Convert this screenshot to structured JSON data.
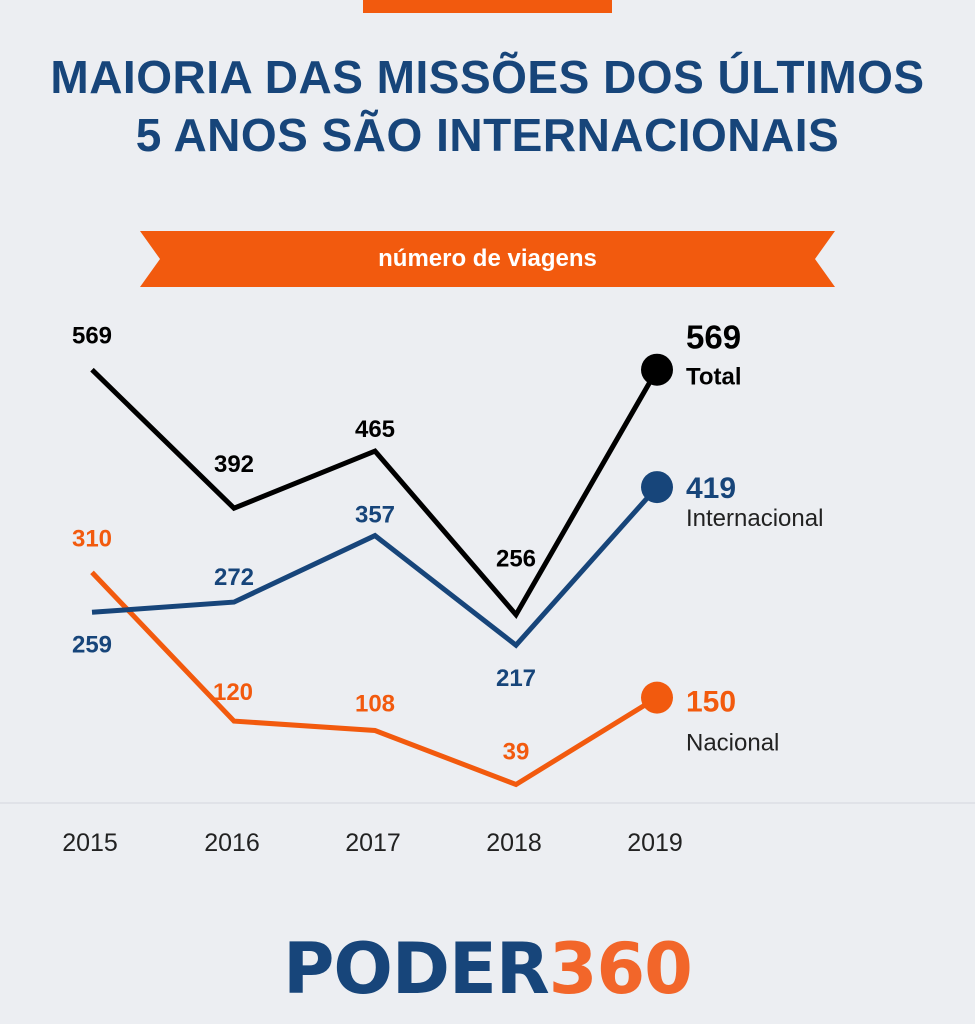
{
  "title_line1": "MAIORIA DAS MISSÕES DOS ÚLTIMOS",
  "title_line2": "5 ANOS SÃO INTERNACIONAIS",
  "subtitle": "número de viagens",
  "logo_part1": "PODER",
  "logo_part2": "360",
  "colors": {
    "title": "#17457a",
    "accent": "#f25a0e",
    "total": "#000000",
    "internacional": "#17457a",
    "nacional": "#f25a0e",
    "axis_text": "#222222"
  },
  "chart_data": {
    "type": "line",
    "title": "MAIORIA DAS MISSÕES DOS ÚLTIMOS 5 ANOS SÃO INTERNACIONAIS",
    "subtitle": "número de viagens",
    "categories": [
      "2015",
      "2016",
      "2017",
      "2018",
      "2019"
    ],
    "series": [
      {
        "name": "Total",
        "values": [
          569,
          392,
          465,
          256,
          569
        ]
      },
      {
        "name": "Internacional",
        "values": [
          259,
          272,
          357,
          217,
          419
        ]
      },
      {
        "name": "Nacional",
        "values": [
          310,
          120,
          108,
          39,
          150
        ]
      }
    ],
    "grid": false,
    "legend": "end-of-line labels"
  }
}
